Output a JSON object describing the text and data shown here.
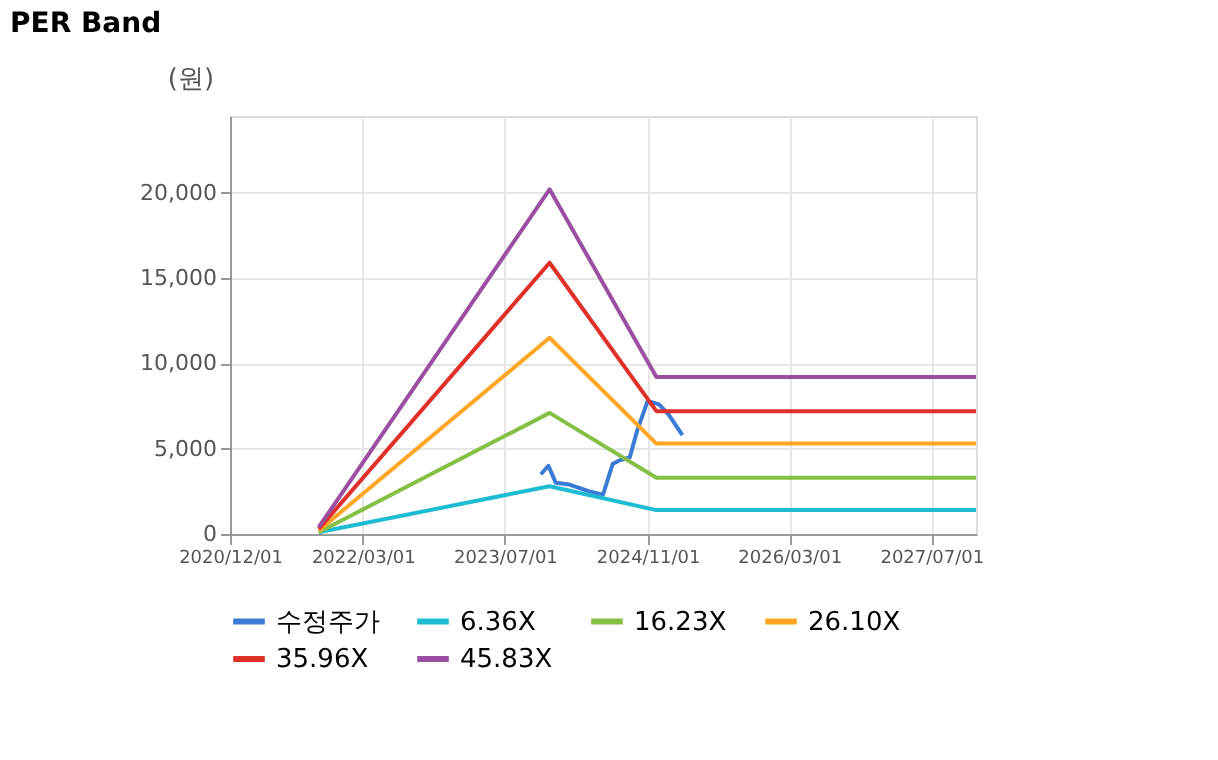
{
  "chart_data": {
    "type": "line",
    "title": "PER Band",
    "ylabel": "(원)",
    "xlim": [
      "2020-12-01",
      "2027-12-01"
    ],
    "xticks": [
      {
        "value": "2020-12-01",
        "label": "2020/12/01"
      },
      {
        "value": "2022-03-01",
        "label": "2022/03/01"
      },
      {
        "value": "2023-07-01",
        "label": "2023/07/01"
      },
      {
        "value": "2024-11-01",
        "label": "2024/11/01"
      },
      {
        "value": "2026-03-01",
        "label": "2026/03/01"
      },
      {
        "value": "2027-07-01",
        "label": "2027/07/01"
      }
    ],
    "ylim": [
      0,
      24500
    ],
    "yticks": [
      {
        "value": 0,
        "label": "0"
      },
      {
        "value": 5000,
        "label": "5,000"
      },
      {
        "value": 10000,
        "label": "10,000"
      },
      {
        "value": 15000,
        "label": "15,000"
      },
      {
        "value": 20000,
        "label": "20,000"
      }
    ],
    "grid": true,
    "legend": "bottom",
    "marker": "none",
    "line_style": "solid",
    "series": [
      {
        "name": "수정주가",
        "color": "#3a7bd5",
        "x": [
          "2023-11-01",
          "2023-11-27",
          "2023-12-22",
          "2024-02-07",
          "2024-04-15",
          "2024-06-01",
          "2024-07-04",
          "2024-07-25",
          "2024-09-01",
          "2024-09-25",
          "2024-11-01",
          "2024-12-10",
          "2025-01-12",
          "2025-02-28"
        ],
        "values": [
          3500,
          4000,
          3000,
          2900,
          2500,
          2300,
          4100,
          4300,
          4500,
          6000,
          7800,
          7600,
          7000,
          5800
        ]
      },
      {
        "name": "6.36X",
        "color": "#1ebcd2",
        "x": [
          "2021-10-01",
          "2023-12-01",
          "2024-12-01",
          "2027-12-01"
        ],
        "values": [
          100,
          2800,
          1400,
          1400
        ]
      },
      {
        "name": "16.23X",
        "color": "#86bf45",
        "x": [
          "2021-10-01",
          "2023-12-01",
          "2024-12-01",
          "2027-12-01"
        ],
        "values": [
          100,
          7100,
          3300,
          3300
        ]
      },
      {
        "name": "26.10X",
        "color": "#ffa624",
        "x": [
          "2021-10-01",
          "2023-12-01",
          "2024-12-01",
          "2027-12-01"
        ],
        "values": [
          200,
          11500,
          5300,
          5300
        ]
      },
      {
        "name": "35.96X",
        "color": "#e0302a",
        "x": [
          "2021-10-01",
          "2023-12-01",
          "2024-12-01",
          "2027-12-01"
        ],
        "values": [
          300,
          15900,
          7200,
          7200
        ]
      },
      {
        "name": "45.83X",
        "color": "#9a4fa0",
        "x": [
          "2021-10-01",
          "2023-12-01",
          "2024-12-01",
          "2027-12-01"
        ],
        "values": [
          400,
          20200,
          9200,
          9200
        ]
      }
    ]
  }
}
